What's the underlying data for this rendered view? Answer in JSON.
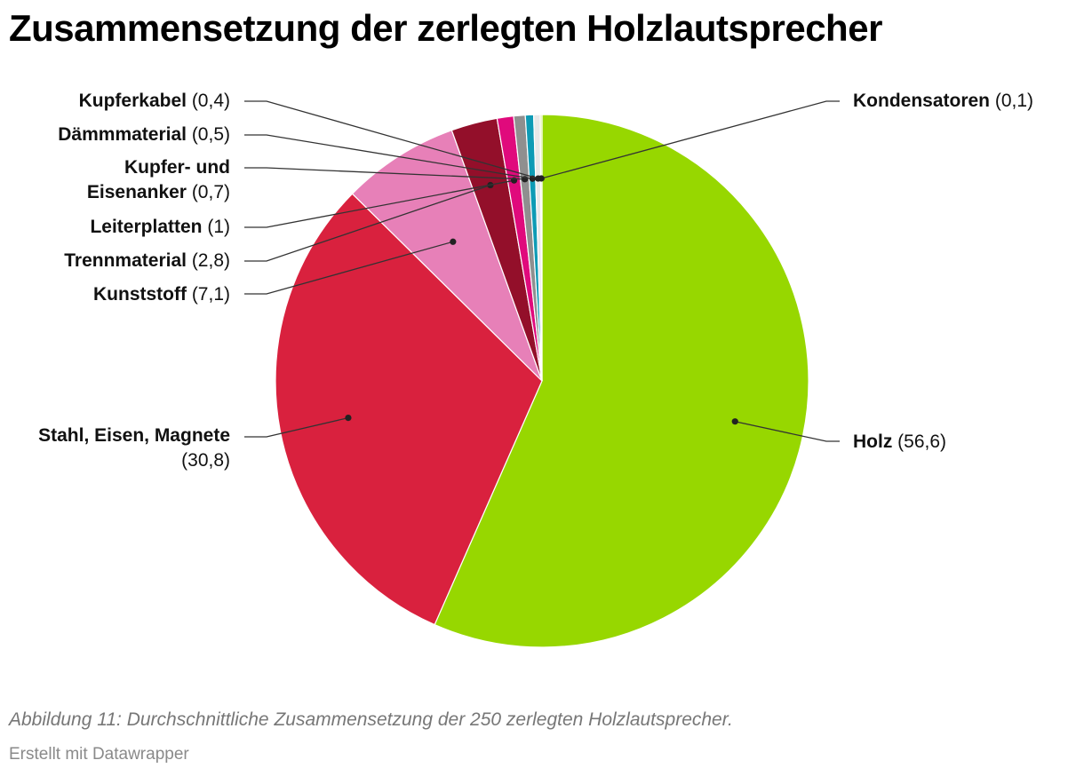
{
  "title": "Zusammensetzung der zerlegten Holzlautsprecher",
  "caption": "Abbildung 11: Durchschnittliche Zusammensetzung der 250 zerlegten Holzlautsprecher.",
  "credit": "Erstellt mit Datawrapper",
  "chart_data": {
    "type": "pie",
    "unit": "",
    "start_angle_deg": 0,
    "direction": "clockwise",
    "slices": [
      {
        "name": "Holz",
        "value": 56.6,
        "value_label": "(56,6)",
        "color": "#97d700"
      },
      {
        "name": "Stahl, Eisen, Magnete",
        "value": 30.8,
        "value_label": "(30,8)",
        "color": "#d9213e"
      },
      {
        "name": "Kunststoff",
        "value": 7.1,
        "value_label": "(7,1)",
        "color": "#e780b8"
      },
      {
        "name": "Trennmaterial",
        "value": 2.8,
        "value_label": "(2,8)",
        "color": "#930f2a"
      },
      {
        "name": "Leiterplatten",
        "value": 1,
        "value_label": "(1)",
        "color": "#e00a7c"
      },
      {
        "name": "Kupfer- und Eisenanker",
        "value": 0.7,
        "value_label": "(0,7)",
        "color": "#8f8f8f"
      },
      {
        "name": "Dämmmaterial",
        "value": 0.5,
        "value_label": "(0,5)",
        "color": "#0e9bb5"
      },
      {
        "name": "Kupferkabel",
        "value": 0.4,
        "value_label": "(0,4)",
        "color": "#e8e8e8"
      },
      {
        "name": "Kondensatoren",
        "value": 0.1,
        "value_label": "(0,1)",
        "color": "#c9e870"
      }
    ]
  }
}
